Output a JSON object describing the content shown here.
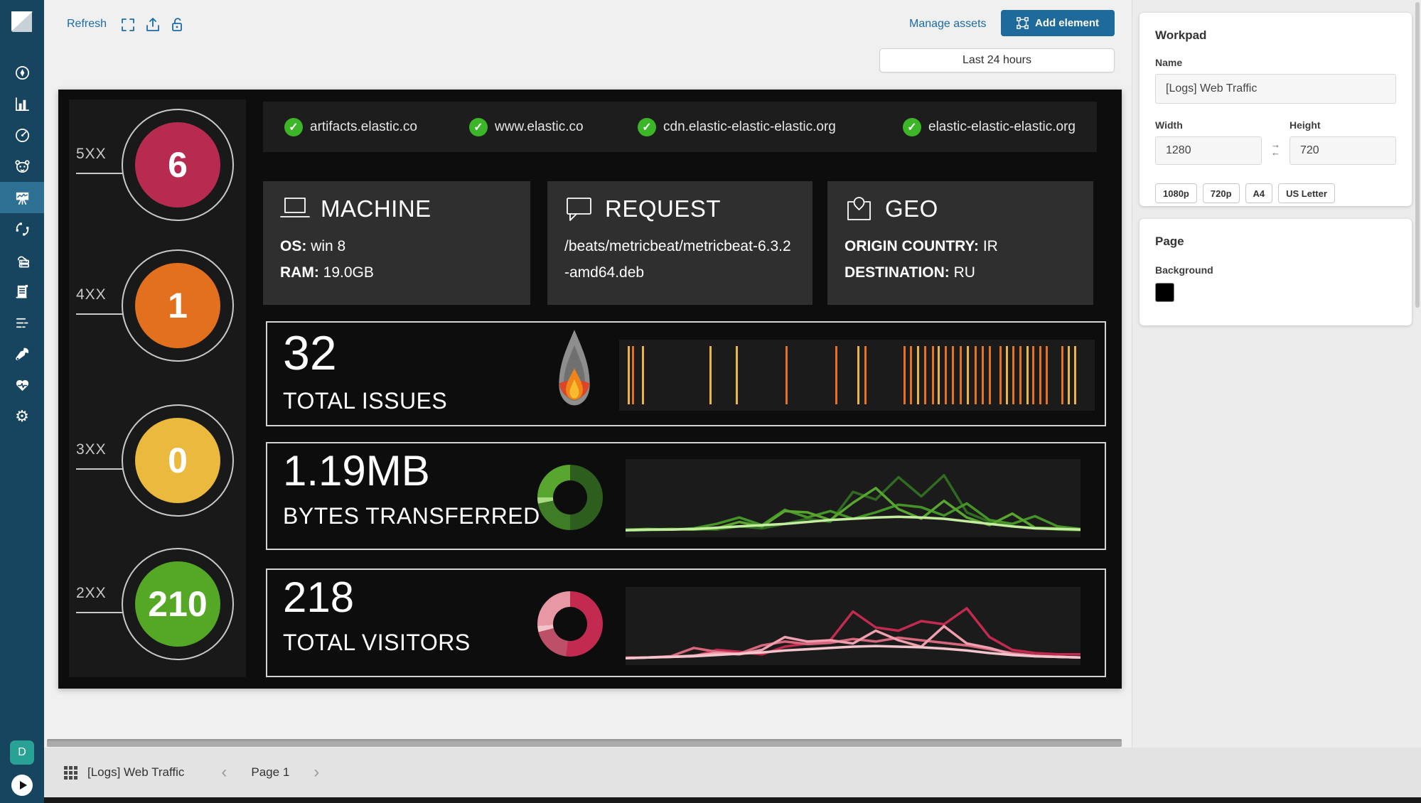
{
  "colors": {
    "accent_blue": "#1b6ca8",
    "primary_button_blue": "#1e6a9b",
    "sidebar_navy": "#17455f",
    "sidebar_active_blue": "#2e7093",
    "check_green": "#3cb528",
    "workpad_black": "#0d0d0d",
    "page_background": "#000000"
  },
  "toolbar": {
    "refresh_label": "Refresh",
    "manage_assets_label": "Manage assets",
    "add_element_label": "Add element",
    "time_filter_value": "Last 24 hours"
  },
  "sidebar": {
    "items": [
      "discover",
      "visualize",
      "dashboard",
      "apm",
      "canvas",
      "machine-learning",
      "infrastructure",
      "logs",
      "uptime",
      "dev-tools",
      "monitoring",
      "management"
    ],
    "active_item": "canvas",
    "space_avatar_letter": "D"
  },
  "canvas": {
    "status_circles": [
      {
        "label": "5XX",
        "value": "6",
        "color": "#b72b51"
      },
      {
        "label": "4XX",
        "value": "1",
        "color": "#e2701f"
      },
      {
        "label": "3XX",
        "value": "0",
        "color": "#eab93d"
      },
      {
        "label": "2XX",
        "value": "210",
        "color": "#54a825"
      }
    ],
    "domains": [
      {
        "name": "artifacts.elastic.co"
      },
      {
        "name": "www.elastic.co"
      },
      {
        "name": "cdn.elastic-elastic-elastic.org"
      },
      {
        "name": "elastic-elastic-elastic.org"
      }
    ],
    "cards": {
      "machine": {
        "title": "MACHINE",
        "os_label": "OS:",
        "os_value": "win 8",
        "ram_label": "RAM:",
        "ram_value": "19.0GB"
      },
      "request": {
        "title": "REQUEST",
        "path": "/beats/metricbeat/metricbeat-6.3.2-amd64.deb"
      },
      "geo": {
        "title": "GEO",
        "origin_label": "ORIGIN COUNTRY:",
        "origin_value": "IR",
        "dest_label": "DESTINATION:",
        "dest_value": "RU"
      }
    },
    "metrics": {
      "issues": {
        "value": "32",
        "label": "TOTAL ISSUES"
      },
      "bytes": {
        "value": "1.19MB",
        "label": "BYTES TRANSFERRED"
      },
      "visitors": {
        "value": "218",
        "label": "TOTAL VISITORS"
      }
    }
  },
  "chart_data": [
    {
      "id": "issues-ticks",
      "type": "event-ticks",
      "title": "TOTAL ISSUES event timeline",
      "colors": {
        "y": "#eab546",
        "o": "#e4731f"
      },
      "ticks": [
        [
          0.018,
          "y"
        ],
        [
          0.027,
          "o"
        ],
        [
          0.048,
          "y"
        ],
        [
          0.19,
          "y"
        ],
        [
          0.245,
          "y"
        ],
        [
          0.35,
          "o"
        ],
        [
          0.455,
          "o"
        ],
        [
          0.5,
          "y"
        ],
        [
          0.515,
          "o"
        ],
        [
          0.598,
          "o"
        ],
        [
          0.612,
          "o"
        ],
        [
          0.627,
          "y"
        ],
        [
          0.642,
          "o"
        ],
        [
          0.657,
          "o"
        ],
        [
          0.67,
          "y"
        ],
        [
          0.684,
          "o"
        ],
        [
          0.7,
          "o"
        ],
        [
          0.716,
          "o"
        ],
        [
          0.731,
          "y"
        ],
        [
          0.748,
          "o"
        ],
        [
          0.762,
          "o"
        ],
        [
          0.777,
          "o"
        ],
        [
          0.8,
          "o"
        ],
        [
          0.813,
          "y"
        ],
        [
          0.827,
          "o"
        ],
        [
          0.842,
          "o"
        ],
        [
          0.856,
          "y"
        ],
        [
          0.869,
          "o"
        ],
        [
          0.883,
          "o"
        ],
        [
          0.897,
          "o"
        ],
        [
          0.93,
          "o"
        ],
        [
          0.943,
          "y"
        ],
        [
          0.957,
          "y"
        ]
      ]
    },
    {
      "id": "bytes-donut",
      "type": "pie",
      "title": "Bytes transferred by host",
      "slices": [
        {
          "value": 50,
          "color": "#2d5e1e"
        },
        {
          "value": 22,
          "color": "#3e7c26"
        },
        {
          "value": 3,
          "color": "#a9dc82"
        },
        {
          "value": 25,
          "color": "#58a62f"
        }
      ]
    },
    {
      "id": "bytes-lines",
      "type": "line",
      "title": "Bytes transferred over time",
      "ymax": 10,
      "series": [
        {
          "name": "series-1",
          "color": "#2f6b20",
          "values": [
            0.2,
            0.2,
            0.3,
            0.4,
            0.3,
            0.8,
            0.5,
            1.2,
            2.0,
            1.5,
            6.2,
            5.0,
            8.5,
            5.5,
            8.8,
            3.0,
            1.5,
            0.8,
            0.6,
            0.3,
            0.2
          ]
        },
        {
          "name": "series-2",
          "color": "#459427",
          "values": [
            0.3,
            0.4,
            0.3,
            0.5,
            1.2,
            2.2,
            1.0,
            3.4,
            2.2,
            3.2,
            2.0,
            3.0,
            4.2,
            3.8,
            2.5,
            4.4,
            1.8,
            1.2,
            2.4,
            0.8,
            0.4
          ]
        },
        {
          "name": "series-3",
          "color": "#58a62f",
          "values": [
            0.3,
            0.3,
            0.4,
            0.3,
            0.5,
            1.5,
            0.8,
            3.2,
            3.0,
            1.8,
            4.5,
            6.8,
            3.5,
            2.0,
            4.8,
            2.2,
            1.0,
            2.8,
            0.6,
            0.5,
            0.4
          ]
        },
        {
          "name": "series-4",
          "color": "#c4eda0",
          "values": [
            0.2,
            0.3,
            0.3,
            0.4,
            0.6,
            0.8,
            1.0,
            1.2,
            1.5,
            1.8,
            2.0,
            2.2,
            2.3,
            2.2,
            2.0,
            1.6,
            1.2,
            0.8,
            0.5,
            0.4,
            0.3
          ]
        }
      ]
    },
    {
      "id": "visitors-donut",
      "type": "pie",
      "title": "Visitors by host",
      "slices": [
        {
          "value": 52,
          "color": "#c22a50"
        },
        {
          "value": 19,
          "color": "#bd5068"
        },
        {
          "value": 3,
          "color": "#efc3c9"
        },
        {
          "value": 26,
          "color": "#e897a4"
        }
      ]
    },
    {
      "id": "visitors-lines",
      "type": "line",
      "title": "Visitors over time",
      "ymax": 10,
      "series": [
        {
          "name": "series-1",
          "color": "#c22a50",
          "values": [
            0.3,
            0.3,
            0.4,
            0.5,
            1.5,
            1.2,
            0.8,
            2.0,
            2.5,
            3.0,
            7.5,
            5.0,
            4.5,
            6.0,
            5.5,
            8.0,
            3.5,
            1.5,
            1.0,
            0.8,
            0.8
          ]
        },
        {
          "name": "series-2",
          "color": "#d8667c",
          "values": [
            0.2,
            0.3,
            0.5,
            1.8,
            1.2,
            0.9,
            2.2,
            2.8,
            2.4,
            2.6,
            3.2,
            2.8,
            3.4,
            3.0,
            2.6,
            2.2,
            1.6,
            1.0,
            0.6,
            0.4,
            0.3
          ]
        },
        {
          "name": "series-3",
          "color": "#ef9fae",
          "values": [
            0.2,
            0.3,
            0.4,
            0.6,
            1.0,
            0.8,
            1.5,
            3.5,
            2.8,
            3.0,
            2.5,
            4.5,
            3.0,
            2.0,
            5.2,
            2.5,
            1.8,
            0.8,
            0.5,
            0.4,
            0.3
          ]
        },
        {
          "name": "series-4",
          "color": "#f3c6ce",
          "values": [
            0.2,
            0.3,
            0.4,
            0.5,
            0.7,
            0.9,
            1.1,
            1.4,
            1.6,
            1.8,
            2.0,
            2.1,
            2.0,
            1.9,
            1.7,
            1.4,
            1.0,
            0.7,
            0.5,
            0.4,
            0.3
          ]
        }
      ]
    }
  ],
  "workpad_panel": {
    "title": "Workpad",
    "name_label": "Name",
    "name_value": "[Logs] Web Traffic",
    "width_label": "Width",
    "width_value": "1280",
    "height_label": "Height",
    "height_value": "720",
    "presets": [
      "1080p",
      "720p",
      "A4",
      "US Letter"
    ]
  },
  "page_panel": {
    "title": "Page",
    "background_label": "Background",
    "background_value": "#000000"
  },
  "footer": {
    "workpad_name": "[Logs] Web Traffic",
    "page_label": "Page 1"
  }
}
